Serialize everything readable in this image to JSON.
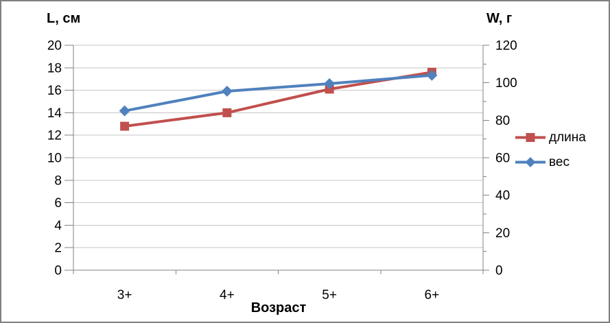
{
  "chart_data": {
    "type": "line",
    "categories": [
      "3+",
      "4+",
      "5+",
      "6+"
    ],
    "series": [
      {
        "name": "длина",
        "axis": "left",
        "color": "#C0504D",
        "marker": "square",
        "values": [
          12.8,
          14.0,
          16.1,
          17.6
        ]
      },
      {
        "name": "вес",
        "axis": "right",
        "color": "#4F81BD",
        "marker": "diamond",
        "values": [
          85,
          95.5,
          99.5,
          104
        ]
      }
    ],
    "left_axis": {
      "title": "L, см",
      "min": 0,
      "max": 20,
      "step": 2,
      "tick_labels": [
        "0",
        "2",
        "4",
        "6",
        "8",
        "10",
        "12",
        "14",
        "16",
        "18",
        "20"
      ]
    },
    "right_axis": {
      "title": "W, г",
      "min": 0,
      "max": 120,
      "step": 20,
      "minor_step": 10,
      "tick_labels": [
        "0",
        "20",
        "40",
        "60",
        "80",
        "100",
        "120"
      ]
    },
    "x_axis": {
      "title": "Возраст"
    },
    "legend": {
      "position": "right"
    },
    "grid": true,
    "colors": {
      "gridline": "#C6C6C6",
      "axis_line": "#808080",
      "text": "#000000",
      "frame_border": "#7F7F7F",
      "background": "#FFFFFF"
    }
  }
}
